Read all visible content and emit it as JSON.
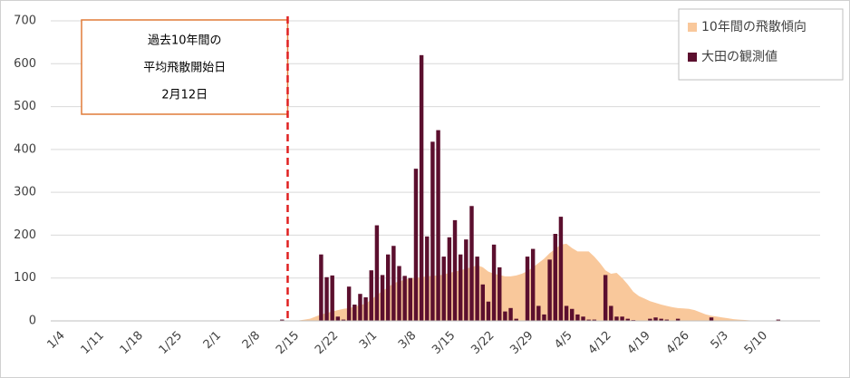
{
  "chart_data": {
    "type": "bar_area",
    "categories": [
      null,
      null,
      null,
      "1/4",
      null,
      null,
      null,
      null,
      null,
      null,
      "1/11",
      null,
      null,
      null,
      null,
      null,
      null,
      "1/18",
      null,
      null,
      null,
      null,
      null,
      null,
      "1/25",
      null,
      null,
      null,
      null,
      null,
      null,
      "2/1",
      null,
      null,
      null,
      null,
      null,
      null,
      "2/8",
      null,
      null,
      null,
      null,
      null,
      null,
      "2/15",
      null,
      null,
      null,
      null,
      null,
      null,
      "2/22",
      null,
      null,
      null,
      null,
      null,
      null,
      "3/1",
      null,
      null,
      null,
      null,
      null,
      null,
      "3/8",
      null,
      null,
      null,
      null,
      null,
      null,
      "3/15",
      null,
      null,
      null,
      null,
      null,
      null,
      "3/22",
      null,
      null,
      null,
      null,
      null,
      null,
      "3/29",
      null,
      null,
      null,
      null,
      null,
      null,
      "4/5",
      null,
      null,
      null,
      null,
      null,
      null,
      "4/12",
      null,
      null,
      null,
      null,
      null,
      null,
      "4/19",
      null,
      null,
      null,
      null,
      null,
      null,
      "4/26",
      null,
      null,
      null,
      null,
      null,
      null,
      "5/3",
      null,
      null,
      null,
      null,
      null,
      null,
      "5/10",
      null,
      null,
      null,
      null,
      null,
      null,
      null,
      null
    ],
    "series": [
      {
        "name": "10年間の飛散傾向",
        "kind": "area",
        "color": "#f9c89b",
        "values": [
          0,
          0,
          0,
          0,
          0,
          0,
          0,
          0,
          0,
          0,
          0,
          0,
          0,
          0,
          0,
          0,
          0,
          0,
          0,
          0,
          0,
          0,
          0,
          0,
          0,
          0,
          0,
          0,
          0,
          0,
          0,
          0,
          0,
          0,
          0,
          0,
          0,
          0,
          0,
          0,
          0,
          0,
          0,
          0,
          1,
          3,
          5,
          10,
          15,
          18,
          22,
          25,
          28,
          30,
          33,
          37,
          40,
          50,
          60,
          70,
          78,
          88,
          92,
          96,
          100,
          100,
          102,
          104,
          105,
          106,
          108,
          112,
          115,
          118,
          122,
          125,
          130,
          125,
          115,
          110,
          107,
          104,
          104,
          106,
          110,
          116,
          125,
          135,
          145,
          158,
          168,
          178,
          180,
          170,
          162,
          162,
          162,
          150,
          135,
          118,
          110,
          112,
          100,
          85,
          68,
          58,
          52,
          46,
          42,
          38,
          35,
          32,
          30,
          29,
          28,
          25,
          20,
          15,
          12,
          10,
          8,
          6,
          4,
          3,
          2,
          1,
          0,
          0,
          0,
          0,
          0,
          0,
          0,
          0,
          0,
          0,
          0,
          0
        ]
      },
      {
        "name": "大田の観測値",
        "kind": "bar",
        "color": "#5b0f2e",
        "values": [
          0,
          0,
          0,
          0,
          0,
          0,
          0,
          0,
          0,
          0,
          0,
          0,
          0,
          0,
          0,
          0,
          0,
          0,
          0,
          0,
          0,
          0,
          0,
          0,
          0,
          0,
          0,
          0,
          0,
          0,
          0,
          0,
          0,
          0,
          0,
          0,
          0,
          0,
          0,
          0,
          0,
          3,
          0,
          0,
          0,
          0,
          0,
          0,
          155,
          102,
          106,
          10,
          3,
          80,
          38,
          63,
          55,
          118,
          223,
          107,
          155,
          175,
          128,
          105,
          100,
          355,
          620,
          197,
          418,
          445,
          150,
          195,
          235,
          155,
          190,
          268,
          150,
          85,
          45,
          178,
          125,
          22,
          30,
          5,
          0,
          150,
          168,
          35,
          15,
          143,
          203,
          243,
          35,
          28,
          15,
          10,
          3,
          3,
          0,
          107,
          35,
          10,
          10,
          5,
          2,
          0,
          0,
          5,
          8,
          5,
          3,
          0,
          5,
          0,
          0,
          0,
          0,
          0,
          8,
          0,
          0,
          0,
          0,
          0,
          0,
          0,
          0,
          0,
          0,
          0,
          3,
          0,
          0,
          0,
          0,
          0,
          0,
          0
        ]
      }
    ],
    "ylim": [
      0,
      700
    ],
    "yticks": [
      0,
      100,
      200,
      300,
      400,
      500,
      600,
      700
    ],
    "grid": true,
    "legend": "top-right",
    "annotation": {
      "lines": [
        "過去10年間の",
        "平均飛散開始日",
        "2月12日"
      ],
      "category_index": 42,
      "line_color": "#e02020",
      "box_color": "#e07b39"
    }
  }
}
